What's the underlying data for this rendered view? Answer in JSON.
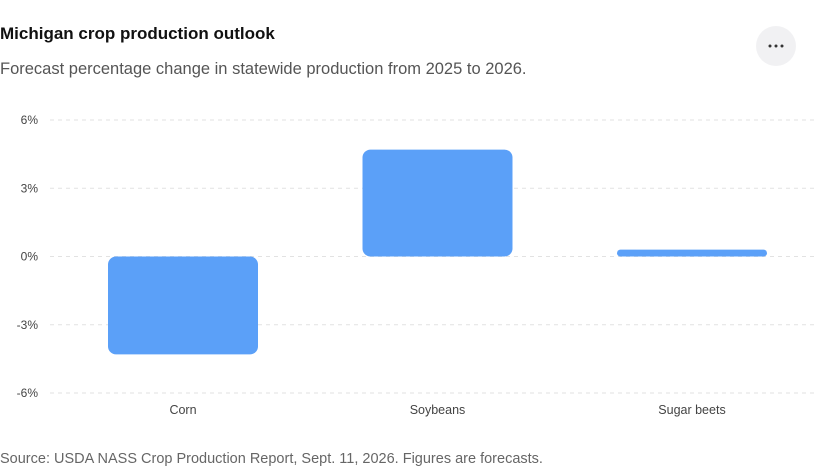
{
  "header": {
    "title": "Michigan crop production outlook",
    "subtitle": "Forecast percentage change in statewide production from 2025 to 2026."
  },
  "menu": {
    "icon": "more-horizontal-icon"
  },
  "footer": {
    "source": "Source: USDA NASS Crop Production Report, Sept. 11, 2026. Figures are forecasts."
  },
  "colors": {
    "bar": "#5ba0f8",
    "grid": "#e2e2e2",
    "menu_bg": "#f1f1f3"
  },
  "chart_data": {
    "type": "bar",
    "title": "Michigan crop production outlook",
    "subtitle": "Forecast percentage change in statewide production from 2025 to 2026.",
    "categories": [
      "Corn",
      "Soybeans",
      "Sugar beets"
    ],
    "values": [
      -4.3,
      4.7,
      0.3
    ],
    "value_unit": "%",
    "yticks": [
      6,
      3,
      0,
      -3,
      -6
    ],
    "ytick_labels": [
      "6%",
      "3%",
      "0%",
      "-3%",
      "-6%"
    ],
    "ylim": [
      -6,
      6
    ],
    "xlabel": "",
    "ylabel": "",
    "grid": true,
    "legend": false
  }
}
